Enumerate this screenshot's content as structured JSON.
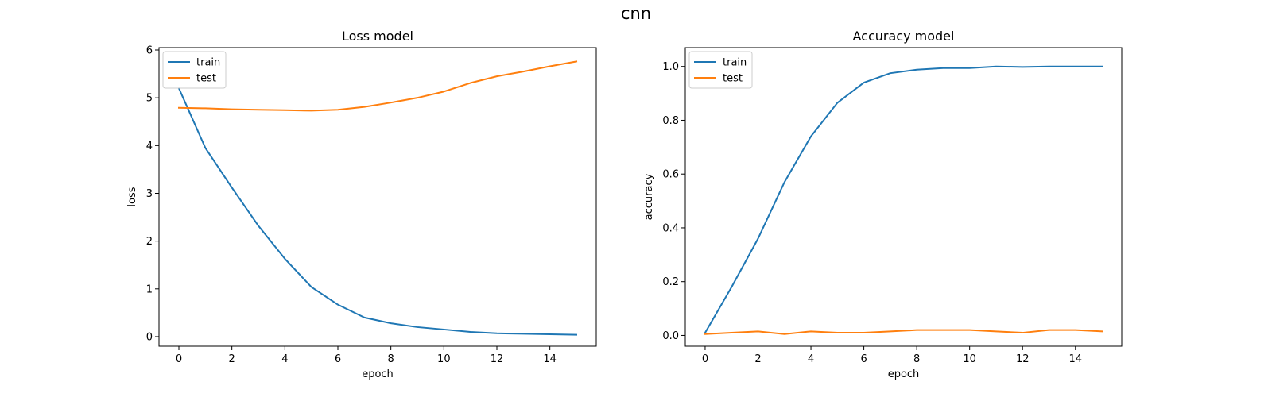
{
  "figure": {
    "title": "cnn",
    "legend_text_color": "#000000"
  },
  "colors": {
    "train": "#1f77b4",
    "test": "#ff7f0e"
  },
  "chart_data": [
    {
      "type": "line",
      "title": "Loss model",
      "xlabel": "epoch",
      "ylabel": "loss",
      "xlim": [
        -0.75,
        15.75
      ],
      "ylim": [
        -0.2,
        6.05
      ],
      "xticks": [
        0,
        2,
        4,
        6,
        8,
        10,
        12,
        14
      ],
      "yticks": [
        0,
        1,
        2,
        3,
        4,
        5,
        6
      ],
      "grid": false,
      "legend_position": "upper-left",
      "x": [
        0,
        1,
        2,
        3,
        4,
        5,
        6,
        7,
        8,
        9,
        10,
        11,
        12,
        13,
        14,
        15
      ],
      "series": [
        {
          "name": "train",
          "values": [
            5.2,
            3.95,
            3.12,
            2.32,
            1.63,
            1.04,
            0.67,
            0.4,
            0.28,
            0.2,
            0.15,
            0.1,
            0.07,
            0.06,
            0.05,
            0.04
          ]
        },
        {
          "name": "test",
          "values": [
            4.79,
            4.78,
            4.76,
            4.75,
            4.74,
            4.73,
            4.75,
            4.81,
            4.9,
            5.0,
            5.13,
            5.31,
            5.45,
            5.55,
            5.66,
            5.76
          ]
        }
      ]
    },
    {
      "type": "line",
      "title": "Accuracy model",
      "xlabel": "epoch",
      "ylabel": "accuracy",
      "xlim": [
        -0.75,
        15.75
      ],
      "ylim": [
        -0.04,
        1.07
      ],
      "xticks": [
        0,
        2,
        4,
        6,
        8,
        10,
        12,
        14
      ],
      "yticks": [
        0.0,
        0.2,
        0.4,
        0.6,
        0.8,
        1.0
      ],
      "ytick_labels": [
        "0.0",
        "0.2",
        "0.4",
        "0.6",
        "0.8",
        "1.0"
      ],
      "grid": false,
      "legend_position": "upper-left",
      "x": [
        0,
        1,
        2,
        3,
        4,
        5,
        6,
        7,
        8,
        9,
        10,
        11,
        12,
        13,
        14,
        15
      ],
      "series": [
        {
          "name": "train",
          "values": [
            0.01,
            0.18,
            0.36,
            0.57,
            0.74,
            0.865,
            0.94,
            0.975,
            0.988,
            0.994,
            0.994,
            1.0,
            0.998,
            1.0,
            1.0,
            1.0
          ]
        },
        {
          "name": "test",
          "values": [
            0.005,
            0.01,
            0.015,
            0.005,
            0.015,
            0.01,
            0.01,
            0.015,
            0.02,
            0.02,
            0.02,
            0.015,
            0.01,
            0.02,
            0.02,
            0.015
          ]
        }
      ]
    }
  ]
}
